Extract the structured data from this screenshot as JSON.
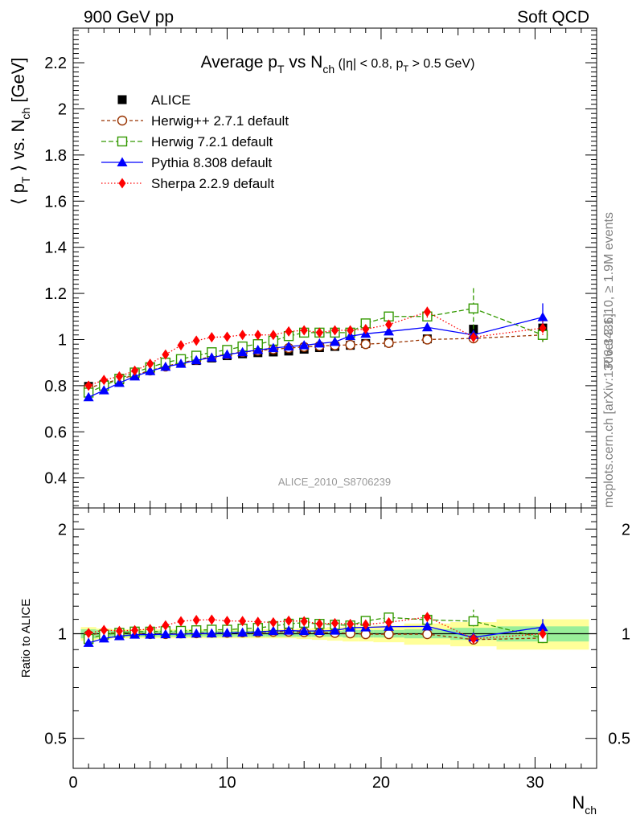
{
  "header": {
    "left": "900 GeV pp",
    "right": "Soft QCD"
  },
  "chart_data": {
    "type": "scatter",
    "title": "Average p_T vs N_ch (|η| < 0.8, p_T > 0.5 GeV)",
    "title_parts": {
      "a": "Average p",
      "a_sub": "T",
      "b": " vs N",
      "b_sub": "ch",
      "cut": " (|η| < 0.8, p",
      "cut_sub": "T",
      "cut_end": " > 0.5 GeV)"
    },
    "ylabel_parts": {
      "a": "⟨ p",
      "a_sub": "T",
      "b": " ⟩ vs. N",
      "b_sub": "ch",
      "c": " [GeV]"
    },
    "xlabel_parts": {
      "a": "N",
      "a_sub": "ch"
    },
    "ratio_ylabel": "Ratio to ALICE",
    "watermark": "ALICE_2010_S8706239",
    "side_text_top": "Rivet 3.1.10, ≥ 1.9M events",
    "side_text_bottom": "mcplots.cern.ch [arXiv:1306.3436]",
    "xlim": [
      0,
      34
    ],
    "ylim": [
      0.27,
      2.35
    ],
    "ratio_ylim": [
      0.41,
      2.3
    ],
    "x_ticks": [
      "0",
      "10",
      "20",
      "30"
    ],
    "y_ticks": [
      "0.4",
      "0.6",
      "0.8",
      "1",
      "1.2",
      "1.4",
      "1.6",
      "1.8",
      "2",
      "2.2"
    ],
    "ratio_y_ticks": [
      "0.5",
      "1",
      "2"
    ],
    "x": [
      1,
      2,
      3,
      4,
      5,
      6,
      7,
      8,
      9,
      10,
      11,
      12,
      13,
      14,
      15,
      16,
      17,
      18,
      19,
      20.5,
      23,
      26,
      30.5
    ],
    "bins": [
      [
        0.5,
        1.5
      ],
      [
        1.5,
        2.5
      ],
      [
        2.5,
        3.5
      ],
      [
        3.5,
        4.5
      ],
      [
        4.5,
        5.5
      ],
      [
        5.5,
        6.5
      ],
      [
        6.5,
        7.5
      ],
      [
        7.5,
        8.5
      ],
      [
        8.5,
        9.5
      ],
      [
        9.5,
        10.5
      ],
      [
        10.5,
        11.5
      ],
      [
        11.5,
        12.5
      ],
      [
        12.5,
        13.5
      ],
      [
        13.5,
        14.5
      ],
      [
        14.5,
        15.5
      ],
      [
        15.5,
        16.5
      ],
      [
        16.5,
        17.5
      ],
      [
        17.5,
        18.5
      ],
      [
        18.5,
        19.5
      ],
      [
        19.5,
        21.5
      ],
      [
        21.5,
        24.5
      ],
      [
        24.5,
        27.5
      ],
      [
        27.5,
        33.5
      ]
    ],
    "data_band_inner": [
      0.03,
      0.025,
      0.02,
      0.02,
      0.02,
      0.02,
      0.02,
      0.02,
      0.02,
      0.02,
      0.02,
      0.02,
      0.02,
      0.02,
      0.02,
      0.02,
      0.02,
      0.025,
      0.025,
      0.025,
      0.03,
      0.04,
      0.05
    ],
    "data_band_outer": [
      0.045,
      0.035,
      0.03,
      0.03,
      0.03,
      0.03,
      0.03,
      0.03,
      0.03,
      0.03,
      0.03,
      0.03,
      0.03,
      0.03,
      0.035,
      0.04,
      0.045,
      0.05,
      0.05,
      0.055,
      0.07,
      0.08,
      0.1
    ],
    "legend": [
      {
        "name": "ALICE",
        "color": "#000000",
        "marker": "square"
      },
      {
        "name": "Herwig++ 2.7.1 default",
        "color": "#993300",
        "marker": "open-circle",
        "dash": "4,3"
      },
      {
        "name": "Herwig 7.2.1 default",
        "color": "#339900",
        "marker": "open-square",
        "dash": "6,3"
      },
      {
        "name": "Pythia 8.308 default",
        "color": "#0000ff",
        "marker": "triangle",
        "dash": ""
      },
      {
        "name": "Sherpa 2.2.9 default",
        "color": "#ff0000",
        "marker": "diamond",
        "dash": "1.5,2.5"
      }
    ],
    "series": [
      {
        "name": "ALICE",
        "values": [
          0.797,
          0.805,
          0.825,
          0.845,
          0.868,
          0.885,
          0.898,
          0.909,
          0.92,
          0.93,
          0.938,
          0.943,
          0.946,
          0.95,
          0.958,
          0.965,
          0.97,
          0.975,
          0.983,
          0.988,
          1.003,
          1.045,
          1.05
        ]
      },
      {
        "name": "Herwig++ 2.7.1 default",
        "values": [
          0.79,
          0.81,
          0.828,
          0.846,
          0.866,
          0.883,
          0.9,
          0.912,
          0.926,
          0.936,
          0.946,
          0.952,
          0.958,
          0.963,
          0.968,
          0.972,
          0.975,
          0.977,
          0.98,
          0.985,
          1.0,
          1.005,
          1.02
        ],
        "err": [
          0,
          0,
          0,
          0,
          0,
          0,
          0,
          0,
          0,
          0,
          0,
          0,
          0,
          0,
          0,
          0,
          0,
          0,
          0,
          0,
          0.01,
          0.01,
          0.03
        ]
      },
      {
        "name": "Herwig 7.2.1 default",
        "values": [
          0.77,
          0.8,
          0.83,
          0.857,
          0.88,
          0.9,
          0.915,
          0.93,
          0.945,
          0.955,
          0.97,
          0.98,
          0.995,
          1.015,
          1.03,
          1.03,
          1.03,
          1.03,
          1.07,
          1.1,
          1.1,
          1.135,
          1.02
        ],
        "err": [
          0,
          0,
          0,
          0,
          0,
          0,
          0,
          0,
          0,
          0,
          0,
          0,
          0,
          0,
          0,
          0,
          0,
          0,
          0,
          0.015,
          0.02,
          0.09,
          0.03
        ]
      },
      {
        "name": "Pythia 8.308 default",
        "values": [
          0.75,
          0.78,
          0.812,
          0.84,
          0.863,
          0.882,
          0.895,
          0.91,
          0.922,
          0.935,
          0.945,
          0.955,
          0.963,
          0.97,
          0.975,
          0.983,
          0.99,
          1.015,
          1.025,
          1.035,
          1.053,
          1.02,
          1.097
        ],
        "err": [
          0,
          0,
          0,
          0,
          0,
          0,
          0,
          0,
          0,
          0,
          0,
          0,
          0,
          0,
          0,
          0,
          0,
          0,
          0,
          0.01,
          0.015,
          0.02,
          0.06
        ]
      },
      {
        "name": "Sherpa 2.2.9 default",
        "values": [
          0.8,
          0.825,
          0.84,
          0.865,
          0.895,
          0.935,
          0.975,
          0.995,
          1.01,
          1.012,
          1.02,
          1.02,
          1.02,
          1.035,
          1.04,
          1.03,
          1.04,
          1.04,
          1.045,
          1.065,
          1.12,
          1.01,
          1.05
        ],
        "err": [
          0,
          0,
          0,
          0,
          0,
          0,
          0,
          0,
          0,
          0,
          0,
          0,
          0,
          0,
          0,
          0,
          0,
          0,
          0,
          0.01,
          0.025,
          0.02,
          0.03
        ]
      }
    ]
  }
}
